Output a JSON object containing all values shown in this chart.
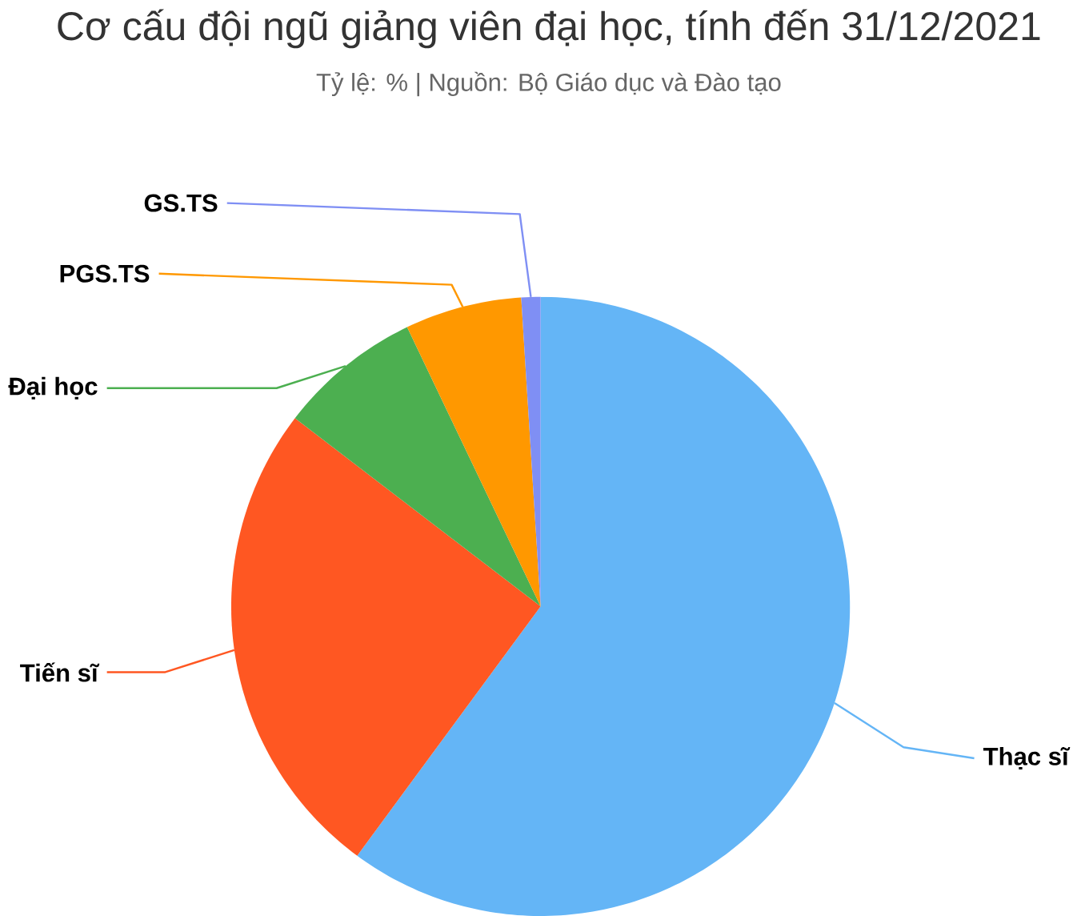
{
  "chart_data": {
    "type": "pie",
    "title": "Cơ cấu đội ngũ giảng viên đại học, tính đến 31/12/2021",
    "subtitle": "Tỷ lệ: % | Nguồn: Bộ Giáo dục và Đào tạo",
    "categories": [
      "Thạc sĩ",
      "Tiến sĩ",
      "Đại học",
      "PGS.TS",
      "GS.TS"
    ],
    "values": [
      60.1,
      25.3,
      7.5,
      6.1,
      1.0
    ],
    "colors": [
      "#64b5f6",
      "#ff5722",
      "#4caf50",
      "#ff9800",
      "#7f8ff4"
    ]
  }
}
